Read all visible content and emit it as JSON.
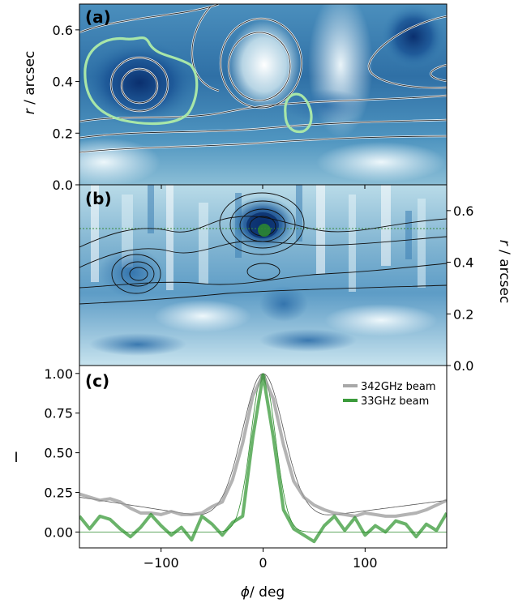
{
  "figure": {
    "x_axis_label": "/ deg",
    "x_symbol": "ϕ"
  },
  "chart_data": [
    {
      "type": "heatmap",
      "panel_label": "(a)",
      "ylabel": "r / arcsec",
      "y_label_side": "left",
      "xlim": [
        -180,
        180
      ],
      "ylim": [
        0.0,
        0.7
      ],
      "yticks": [
        "0.0",
        "0.2",
        "0.4",
        "0.6"
      ],
      "ytick_values": [
        0.0,
        0.2,
        0.4,
        0.6
      ],
      "colormap": "blue-white",
      "features": [
        {
          "kind": "blob",
          "phi": -120,
          "r": 0.37,
          "strength": 1.0,
          "color": "#0a2f6e"
        },
        {
          "kind": "blob",
          "phi": 0,
          "r": 0.48,
          "strength": -1.0,
          "color": "#ffffff"
        },
        {
          "kind": "contour",
          "phi": -120,
          "r": 0.4,
          "color": "#a8e6a8"
        },
        {
          "kind": "contour",
          "phi": 37,
          "r": 0.27,
          "color": "#a8e6a8"
        }
      ]
    },
    {
      "type": "heatmap",
      "panel_label": "(b)",
      "ylabel": "r / arcsec",
      "y_label_side": "right",
      "xlim": [
        -180,
        180
      ],
      "ylim": [
        0.0,
        0.7
      ],
      "yticks": [
        "0.0",
        "0.2",
        "0.4",
        "0.6"
      ],
      "ytick_values": [
        0.0,
        0.2,
        0.4,
        0.6
      ],
      "reference_line_r": 0.53,
      "features": [
        {
          "kind": "blob",
          "phi": 0,
          "r": 0.54,
          "strength": 1.0,
          "color": "#0a2f6e"
        },
        {
          "kind": "point",
          "phi": 2,
          "r": 0.52,
          "color": "#2e8b2e"
        },
        {
          "kind": "blob",
          "phi": -120,
          "r": 0.35,
          "strength": 0.6,
          "color": "#1d5a99"
        }
      ]
    },
    {
      "type": "line",
      "panel_label": "(c)",
      "ylabel": "I",
      "xlim": [
        -180,
        180
      ],
      "ylim": [
        -0.1,
        1.05
      ],
      "xticks": [
        "−100",
        "0",
        "100"
      ],
      "xtick_values": [
        -100,
        0,
        100
      ],
      "yticks": [
        "0.00",
        "0.25",
        "0.50",
        "0.75",
        "1.00"
      ],
      "ytick_values": [
        0.0,
        0.25,
        0.5,
        0.75,
        1.0
      ],
      "legend": {
        "position": "top-right"
      },
      "series": [
        {
          "name": "342GHz beam",
          "color": "#999999",
          "x": [
            -180,
            -170,
            -160,
            -150,
            -140,
            -130,
            -120,
            -110,
            -100,
            -90,
            -80,
            -70,
            -60,
            -50,
            -40,
            -30,
            -20,
            -10,
            0,
            10,
            20,
            30,
            40,
            50,
            60,
            70,
            80,
            90,
            100,
            110,
            120,
            130,
            140,
            150,
            160,
            170,
            180
          ],
          "y": [
            0.24,
            0.22,
            0.2,
            0.21,
            0.19,
            0.15,
            0.12,
            0.12,
            0.11,
            0.13,
            0.11,
            0.11,
            0.12,
            0.16,
            0.19,
            0.33,
            0.56,
            0.86,
            0.99,
            0.84,
            0.55,
            0.32,
            0.22,
            0.17,
            0.14,
            0.12,
            0.11,
            0.1,
            0.12,
            0.11,
            0.1,
            0.1,
            0.11,
            0.12,
            0.14,
            0.17,
            0.2
          ]
        },
        {
          "name": "33GHz beam",
          "color": "#1a8a1a",
          "x": [
            -180,
            -170,
            -160,
            -150,
            -140,
            -130,
            -120,
            -110,
            -100,
            -90,
            -80,
            -70,
            -60,
            -50,
            -40,
            -30,
            -20,
            -10,
            0,
            10,
            20,
            30,
            40,
            50,
            60,
            70,
            80,
            90,
            100,
            110,
            120,
            130,
            140,
            150,
            160,
            170,
            180
          ],
          "y": [
            0.1,
            0.02,
            0.1,
            0.08,
            0.02,
            -0.03,
            0.03,
            0.11,
            0.04,
            -0.02,
            0.03,
            -0.05,
            0.1,
            0.05,
            -0.02,
            0.06,
            0.1,
            0.6,
            0.99,
            0.6,
            0.14,
            0.02,
            -0.02,
            -0.06,
            0.04,
            0.1,
            0.01,
            0.09,
            -0.02,
            0.04,
            0.0,
            0.07,
            0.05,
            -0.03,
            0.05,
            0.01,
            0.12
          ]
        }
      ]
    }
  ]
}
